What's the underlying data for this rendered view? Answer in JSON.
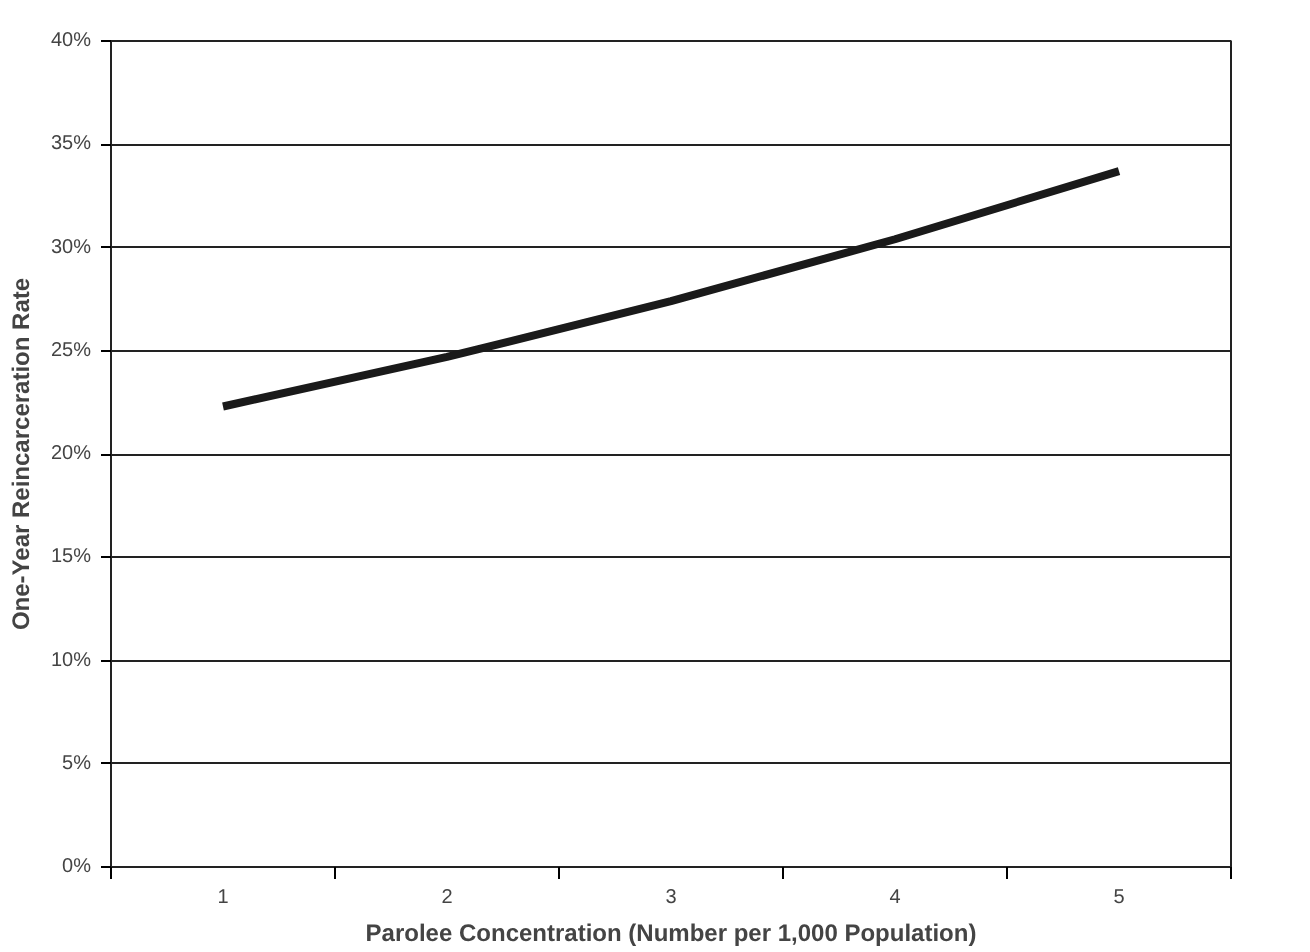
{
  "chart_data": {
    "type": "line",
    "xlabel": "Parolee Concentration (Number per 1,000 Population)",
    "ylabel": "One-Year Reincarceration Rate",
    "categories": [
      "1",
      "2",
      "3",
      "4",
      "5"
    ],
    "series": [
      {
        "color": "#1a1a1a",
        "values": [
          22.3,
          24.7,
          27.4,
          30.4,
          33.7
        ]
      }
    ],
    "ylim": [
      0,
      40
    ],
    "yticks": [
      {
        "value": 0,
        "label": "0%"
      },
      {
        "value": 5,
        "label": "5%"
      },
      {
        "value": 10,
        "label": "10%"
      },
      {
        "value": 15,
        "label": "15%"
      },
      {
        "value": 20,
        "label": "20%"
      },
      {
        "value": 25,
        "label": "25%"
      },
      {
        "value": 30,
        "label": "30%"
      },
      {
        "value": 35,
        "label": "35%"
      },
      {
        "value": 40,
        "label": "40%"
      }
    ],
    "grid": "y",
    "marker": "none",
    "line_style": "solid"
  }
}
